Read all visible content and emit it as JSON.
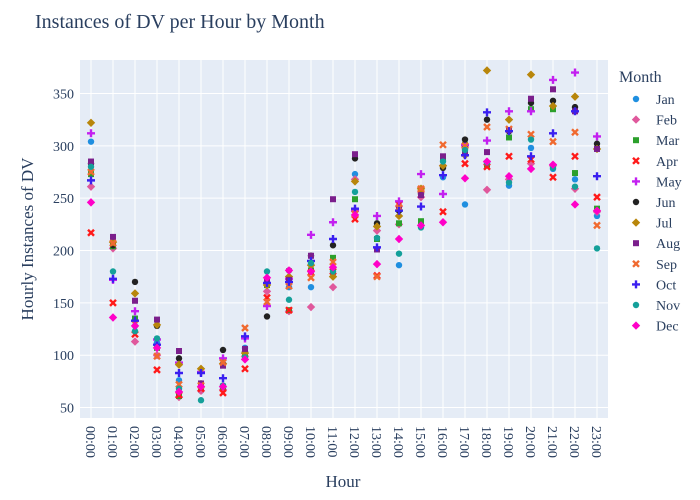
{
  "chart_data": {
    "type": "scatter",
    "title": "Instances of DV per Hour by Month",
    "xlabel": "Hour",
    "ylabel": "Hourly Instances of DV",
    "legend_title": "Month",
    "legend_position": "right",
    "grid": true,
    "ylim": [
      40,
      382
    ],
    "yticks": [
      50,
      100,
      150,
      200,
      250,
      300,
      350
    ],
    "categories": [
      "00:00",
      "01:00",
      "02:00",
      "03:00",
      "04:00",
      "05:00",
      "06:00",
      "07:00",
      "08:00",
      "09:00",
      "10:00",
      "11:00",
      "12:00",
      "13:00",
      "14:00",
      "15:00",
      "16:00",
      "17:00",
      "18:00",
      "19:00",
      "20:00",
      "21:00",
      "22:00",
      "23:00"
    ],
    "series": [
      {
        "name": "Jan",
        "color": "#1f8fe0",
        "symbol": "circle",
        "values": [
          304,
          203,
          128,
          112,
          76,
          66,
          69,
          107,
          168,
          165,
          165,
          178,
          273,
          224,
          186,
          224,
          270,
          244,
          283,
          262,
          298,
          278,
          268,
          233
        ]
      },
      {
        "name": "Feb",
        "color": "#e0589c",
        "symbol": "diamond",
        "values": [
          261,
          202,
          113,
          100,
          60,
          66,
          67,
          99,
          161,
          142,
          146,
          165,
          268,
          219,
          225,
          251,
          281,
          299,
          258,
          268,
          283,
          281,
          259,
          237
        ]
      },
      {
        "name": "Mar",
        "color": "#2ca02c",
        "symbol": "square",
        "values": [
          273,
          204,
          135,
          107,
          61,
          69,
          70,
          99,
          167,
          143,
          181,
          193,
          249,
          211,
          226,
          228,
          288,
          301,
          282,
          308,
          335,
          335,
          274,
          240
        ]
      },
      {
        "name": "Apr",
        "color": "#ff1a1a",
        "symbol": "x",
        "values": [
          217,
          150,
          120,
          86,
          62,
          68,
          64,
          87,
          155,
          143,
          179,
          180,
          230,
          176,
          244,
          258,
          237,
          283,
          280,
          290,
          287,
          270,
          290,
          251
        ]
      },
      {
        "name": "May",
        "color": "#c320f0",
        "symbol": "cross",
        "values": [
          312,
          172,
          142,
          115,
          93,
          84,
          97,
          116,
          147,
          173,
          215,
          227,
          238,
          233,
          247,
          273,
          254,
          301,
          305,
          333,
          333,
          363,
          370,
          309
        ]
      },
      {
        "name": "Jun",
        "color": "#222222",
        "symbol": "circle",
        "values": [
          283,
          205,
          170,
          128,
          97,
          73,
          105,
          103,
          137,
          181,
          195,
          205,
          288,
          226,
          238,
          254,
          279,
          306,
          325,
          314,
          341,
          343,
          337,
          302
        ]
      },
      {
        "name": "Jul",
        "color": "#b8860b",
        "symbol": "diamond",
        "values": [
          322,
          208,
          159,
          129,
          91,
          87,
          92,
          102,
          167,
          175,
          186,
          175,
          266,
          223,
          233,
          259,
          281,
          291,
          372,
          325,
          368,
          338,
          347,
          297
        ]
      },
      {
        "name": "Aug",
        "color": "#7b1f8c",
        "symbol": "square",
        "values": [
          285,
          213,
          152,
          134,
          104,
          73,
          90,
          106,
          172,
          172,
          195,
          249,
          292,
          201,
          241,
          253,
          290,
          293,
          294,
          315,
          345,
          354,
          333,
          297
        ]
      },
      {
        "name": "Sep",
        "color": "#f06a30",
        "symbol": "x",
        "values": [
          275,
          207,
          130,
          99,
          72,
          71,
          93,
          126,
          151,
          166,
          174,
          189,
          235,
          175,
          241,
          259,
          301,
          300,
          318,
          316,
          311,
          304,
          313,
          224
        ]
      },
      {
        "name": "Oct",
        "color": "#3a1ff0",
        "symbol": "cross",
        "values": [
          267,
          173,
          133,
          110,
          83,
          83,
          78,
          118,
          169,
          170,
          190,
          211,
          240,
          203,
          238,
          242,
          272,
          291,
          332,
          314,
          290,
          312,
          333,
          271
        ]
      },
      {
        "name": "Nov",
        "color": "#14a09a",
        "symbol": "circle",
        "values": [
          280,
          180,
          123,
          116,
          68,
          57,
          71,
          98,
          180,
          153,
          188,
          180,
          256,
          212,
          197,
          222,
          285,
          296,
          284,
          265,
          306,
          279,
          261,
          202
        ]
      },
      {
        "name": "Dec",
        "color": "#ff00c8",
        "symbol": "diamond",
        "values": [
          246,
          136,
          128,
          107,
          65,
          70,
          70,
          96,
          174,
          181,
          180,
          184,
          234,
          187,
          211,
          224,
          227,
          269,
          285,
          271,
          278,
          282,
          244,
          238
        ]
      }
    ]
  }
}
